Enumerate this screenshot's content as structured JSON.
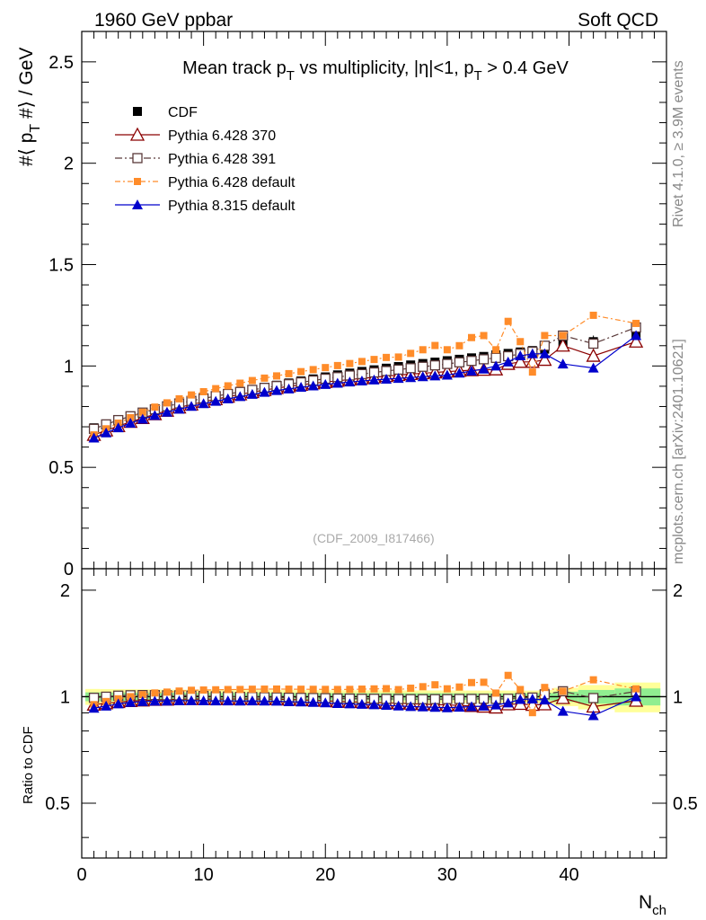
{
  "header": {
    "left": "1960 GeV ppbar",
    "right": "Soft QCD"
  },
  "side_labels": {
    "top": "Rivet 4.1.0, ≥ 3.9M events",
    "bottom": "mcplots.cern.ch [arXiv:2401.10621]"
  },
  "chart_data": {
    "type": "scatter",
    "title": "Mean track p_T vs multiplicity, |η|<1, p_T > 0.4 GeV",
    "reference": "(CDF_2009_I817466)",
    "xlabel": "N_ch",
    "ylabel": "⟨ p_T ⟩ / GeV",
    "ratio_ylabel": "Ratio to CDF",
    "xlim": [
      0,
      48
    ],
    "ylim": [
      0,
      2.65
    ],
    "ratio_ylim": [
      0.35,
      2.3
    ],
    "x_ticks": [
      0,
      10,
      20,
      30,
      40
    ],
    "y_ticks": [
      0,
      0.5,
      1,
      1.5,
      2,
      2.5
    ],
    "y_tick_labels": [
      "0",
      "0.5",
      "1",
      "1.5",
      "2",
      "2.5"
    ],
    "ratio_ticks": [
      0.5,
      1,
      2
    ],
    "ratio_tick_labels": [
      "0.5",
      "1",
      "2"
    ],
    "colors": {
      "cdf": "#000000",
      "p370": "#8b0000",
      "p391": "#5a3a3a",
      "p6def": "#ff8c2a",
      "p8def": "#0000cc",
      "band_inner": "#90ee90",
      "band_outer": "#ffff99"
    },
    "series": [
      {
        "name": "CDF",
        "key": "cdf",
        "x": [
          1,
          2,
          3,
          4,
          5,
          6,
          7,
          8,
          9,
          10,
          11,
          12,
          13,
          14,
          15,
          16,
          17,
          18,
          19,
          20,
          21,
          22,
          23,
          24,
          25,
          26,
          27,
          28,
          29,
          30,
          31,
          32,
          33,
          34,
          35,
          36,
          37,
          38,
          39.5,
          42,
          45.5
        ],
        "y": [
          0.695,
          0.712,
          0.728,
          0.745,
          0.762,
          0.778,
          0.794,
          0.808,
          0.822,
          0.836,
          0.849,
          0.861,
          0.873,
          0.884,
          0.895,
          0.905,
          0.916,
          0.926,
          0.936,
          0.946,
          0.956,
          0.965,
          0.973,
          0.981,
          0.989,
          0.997,
          1.005,
          1.012,
          1.019,
          1.026,
          1.033,
          1.04,
          1.047,
          1.055,
          1.062,
          1.069,
          1.076,
          1.083,
          1.11,
          1.12,
          1.15
        ],
        "err": [
          0.01,
          0.01,
          0.01,
          0.01,
          0.01,
          0.01,
          0.01,
          0.01,
          0.01,
          0.01,
          0.01,
          0.01,
          0.01,
          0.01,
          0.01,
          0.01,
          0.01,
          0.01,
          0.01,
          0.01,
          0.01,
          0.01,
          0.01,
          0.01,
          0.01,
          0.01,
          0.01,
          0.01,
          0.01,
          0.01,
          0.01,
          0.01,
          0.01,
          0.01,
          0.01,
          0.01,
          0.01,
          0.012,
          0.02,
          0.03,
          0.04
        ]
      },
      {
        "name": "Pythia 6.428 370",
        "key": "p370",
        "x": [
          1,
          2,
          3,
          4,
          5,
          6,
          7,
          8,
          9,
          10,
          11,
          12,
          13,
          14,
          15,
          16,
          17,
          18,
          19,
          20,
          21,
          22,
          23,
          24,
          25,
          26,
          27,
          28,
          29,
          30,
          31,
          32,
          33,
          34,
          35,
          36,
          37,
          38,
          39.5,
          42,
          45.5
        ],
        "y": [
          0.66,
          0.682,
          0.703,
          0.724,
          0.743,
          0.762,
          0.779,
          0.795,
          0.81,
          0.823,
          0.836,
          0.848,
          0.86,
          0.871,
          0.881,
          0.891,
          0.899,
          0.907,
          0.914,
          0.921,
          0.927,
          0.933,
          0.939,
          0.944,
          0.95,
          0.955,
          0.96,
          0.964,
          0.968,
          0.972,
          0.976,
          0.979,
          0.981,
          0.983,
          1.01,
          1.02,
          1.02,
          1.03,
          1.1,
          1.05,
          1.12
        ]
      },
      {
        "name": "Pythia 6.428 391",
        "key": "p391",
        "x": [
          1,
          2,
          3,
          4,
          5,
          6,
          7,
          8,
          9,
          10,
          11,
          12,
          13,
          14,
          15,
          16,
          17,
          18,
          19,
          20,
          21,
          22,
          23,
          24,
          25,
          26,
          27,
          28,
          29,
          30,
          31,
          32,
          33,
          34,
          35,
          36,
          37,
          38,
          39.5,
          42,
          45.5
        ],
        "y": [
          0.69,
          0.712,
          0.733,
          0.752,
          0.77,
          0.786,
          0.801,
          0.815,
          0.828,
          0.84,
          0.851,
          0.862,
          0.872,
          0.882,
          0.892,
          0.901,
          0.91,
          0.919,
          0.928,
          0.937,
          0.945,
          0.953,
          0.96,
          0.968,
          0.975,
          0.982,
          0.989,
          0.996,
          1.003,
          1.01,
          1.018,
          1.025,
          1.033,
          1.04,
          1.048,
          1.06,
          1.07,
          1.1,
          1.15,
          1.11,
          1.19
        ]
      },
      {
        "name": "Pythia 6.428 default",
        "key": "p6def",
        "x": [
          1,
          2,
          3,
          4,
          5,
          6,
          7,
          8,
          9,
          10,
          11,
          12,
          13,
          14,
          15,
          16,
          17,
          18,
          19,
          20,
          21,
          22,
          23,
          24,
          25,
          26,
          27,
          28,
          29,
          30,
          31,
          32,
          33,
          34,
          35,
          36,
          37,
          38,
          39.5,
          42,
          45.5
        ],
        "y": [
          0.66,
          0.69,
          0.718,
          0.745,
          0.772,
          0.797,
          0.818,
          0.838,
          0.857,
          0.873,
          0.888,
          0.902,
          0.915,
          0.928,
          0.94,
          0.951,
          0.962,
          0.972,
          0.982,
          0.992,
          1.002,
          1.012,
          1.022,
          1.032,
          1.042,
          1.044,
          1.062,
          1.08,
          1.101,
          1.08,
          1.1,
          1.14,
          1.15,
          1.08,
          1.22,
          1.12,
          0.97,
          1.15,
          1.15,
          1.25,
          1.21
        ]
      },
      {
        "name": "Pythia 8.315 default",
        "key": "p8def",
        "x": [
          1,
          2,
          3,
          4,
          5,
          6,
          7,
          8,
          9,
          10,
          11,
          12,
          13,
          14,
          15,
          16,
          17,
          18,
          19,
          20,
          21,
          22,
          23,
          24,
          25,
          26,
          27,
          28,
          29,
          30,
          31,
          32,
          33,
          34,
          35,
          36,
          37,
          38,
          39.5,
          42,
          45.5
        ],
        "y": [
          0.645,
          0.67,
          0.695,
          0.718,
          0.738,
          0.756,
          0.772,
          0.787,
          0.801,
          0.814,
          0.826,
          0.838,
          0.849,
          0.86,
          0.87,
          0.879,
          0.887,
          0.895,
          0.902,
          0.909,
          0.915,
          0.921,
          0.926,
          0.931,
          0.935,
          0.939,
          0.943,
          0.947,
          0.951,
          0.955,
          0.965,
          0.975,
          0.985,
          1.0,
          1.02,
          1.05,
          1.06,
          1.06,
          1.01,
          0.99,
          1.15
        ]
      }
    ]
  }
}
